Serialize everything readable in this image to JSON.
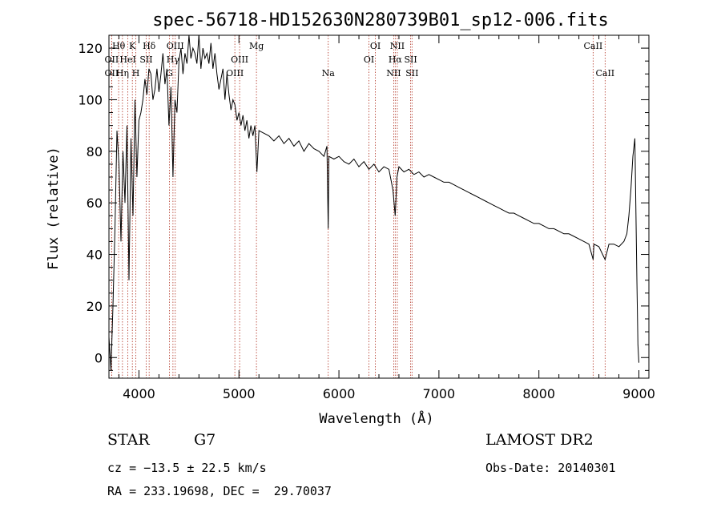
{
  "chart_data": {
    "type": "line",
    "title": "spec-56718-HD152630N280739B01_sp12-006.fits",
    "xlabel": "Wavelength (Å)",
    "ylabel": "Flux (relative)",
    "xlim": [
      3700,
      9100
    ],
    "ylim": [
      -8,
      125
    ],
    "xticks": [
      4000,
      5000,
      6000,
      7000,
      8000,
      9000
    ],
    "yticks": [
      0,
      20,
      40,
      60,
      80,
      100,
      120
    ],
    "grid": false,
    "series": [
      {
        "name": "flux",
        "x": [
          3700,
          3720,
          3740,
          3760,
          3780,
          3800,
          3820,
          3840,
          3860,
          3880,
          3900,
          3920,
          3940,
          3960,
          3980,
          4000,
          4020,
          4040,
          4060,
          4080,
          4100,
          4120,
          4140,
          4160,
          4180,
          4200,
          4220,
          4240,
          4260,
          4280,
          4300,
          4320,
          4340,
          4360,
          4380,
          4400,
          4420,
          4440,
          4460,
          4480,
          4500,
          4520,
          4540,
          4560,
          4580,
          4600,
          4620,
          4640,
          4660,
          4680,
          4700,
          4720,
          4740,
          4760,
          4780,
          4800,
          4820,
          4840,
          4860,
          4880,
          4900,
          4920,
          4940,
          4960,
          4980,
          5000,
          5020,
          5040,
          5060,
          5080,
          5100,
          5120,
          5140,
          5160,
          5180,
          5200,
          5250,
          5300,
          5350,
          5400,
          5450,
          5500,
          5550,
          5600,
          5650,
          5700,
          5750,
          5800,
          5850,
          5880,
          5893,
          5900,
          5950,
          6000,
          6050,
          6100,
          6150,
          6200,
          6250,
          6300,
          6350,
          6400,
          6450,
          6500,
          6540,
          6563,
          6580,
          6600,
          6650,
          6700,
          6750,
          6800,
          6850,
          6900,
          6950,
          7000,
          7050,
          7100,
          7150,
          7200,
          7250,
          7300,
          7350,
          7400,
          7450,
          7500,
          7550,
          7600,
          7650,
          7700,
          7750,
          7800,
          7850,
          7900,
          7950,
          8000,
          8050,
          8100,
          8150,
          8200,
          8250,
          8300,
          8350,
          8400,
          8450,
          8500,
          8542,
          8550,
          8600,
          8662,
          8700,
          8750,
          8800,
          8850,
          8880,
          8900,
          8920,
          8940,
          8960,
          8980,
          8990,
          9000
        ],
        "y": [
          8,
          -5,
          20,
          50,
          88,
          75,
          45,
          80,
          60,
          90,
          30,
          85,
          55,
          100,
          70,
          92,
          95,
          100,
          108,
          102,
          112,
          110,
          100,
          104,
          112,
          103,
          110,
          118,
          106,
          112,
          90,
          105,
          70,
          100,
          95,
          115,
          120,
          110,
          118,
          114,
          125,
          116,
          120,
          118,
          114,
          125,
          112,
          120,
          116,
          118,
          114,
          122,
          112,
          118,
          110,
          104,
          108,
          112,
          100,
          110,
          102,
          96,
          100,
          98,
          92,
          95,
          90,
          94,
          88,
          92,
          85,
          90,
          86,
          90,
          72,
          88,
          87,
          86,
          84,
          86,
          83,
          85,
          82,
          84,
          80,
          83,
          81,
          80,
          78,
          82,
          50,
          78,
          77,
          78,
          76,
          75,
          77,
          74,
          76,
          73,
          75,
          72,
          74,
          73,
          65,
          55,
          70,
          74,
          72,
          73,
          71,
          72,
          70,
          71,
          70,
          69,
          68,
          68,
          67,
          66,
          65,
          64,
          63,
          62,
          61,
          60,
          59,
          58,
          57,
          56,
          56,
          55,
          54,
          53,
          52,
          52,
          51,
          50,
          50,
          49,
          48,
          48,
          47,
          46,
          45,
          44,
          38,
          44,
          43,
          38,
          44,
          44,
          43,
          45,
          48,
          55,
          65,
          78,
          85,
          30,
          5,
          -2
        ]
      }
    ],
    "lines": [
      {
        "label": "Hθ",
        "x": 3797,
        "row": 1
      },
      {
        "label": "OII",
        "x": 3727,
        "row": 2
      },
      {
        "label": "OII",
        "x": 3727,
        "row": 3
      },
      {
        "label": "Hη",
        "x": 3835,
        "row": 3
      },
      {
        "label": "HeI",
        "x": 3889,
        "row": 2
      },
      {
        "label": "K",
        "x": 3934,
        "row": 1
      },
      {
        "label": "H",
        "x": 3969,
        "row": 3
      },
      {
        "label": "SII",
        "x": 4072,
        "row": 2
      },
      {
        "label": "Hδ",
        "x": 4102,
        "row": 1
      },
      {
        "label": "OIII",
        "x": 4363,
        "row": 1
      },
      {
        "label": "Hγ",
        "x": 4340,
        "row": 2
      },
      {
        "label": "G",
        "x": 4305,
        "row": 3
      },
      {
        "label": "OIII",
        "x": 4959,
        "row": 3
      },
      {
        "label": "OIII",
        "x": 5007,
        "row": 2
      },
      {
        "label": "Mg",
        "x": 5175,
        "row": 1
      },
      {
        "label": "Na",
        "x": 5893,
        "row": 3
      },
      {
        "label": "OI",
        "x": 6300,
        "row": 2
      },
      {
        "label": "OI",
        "x": 6364,
        "row": 1
      },
      {
        "label": "NII",
        "x": 6548,
        "row": 3
      },
      {
        "label": "Hα",
        "x": 6563,
        "row": 2
      },
      {
        "label": "NII",
        "x": 6584,
        "row": 1
      },
      {
        "label": "SII",
        "x": 6717,
        "row": 2
      },
      {
        "label": "SII",
        "x": 6731,
        "row": 3
      },
      {
        "label": "CaII",
        "x": 8542,
        "row": 1
      },
      {
        "label": "CaII",
        "x": 8662,
        "row": 3
      }
    ]
  },
  "info": {
    "object_class": "STAR",
    "subclass": "G7",
    "survey": "LAMOST DR2",
    "cz": "cz = −13.5 ± 22.5 km/s",
    "obs_date": "Obs-Date: 20140301",
    "coords": "RA = 233.19698, DEC =  29.70037"
  }
}
